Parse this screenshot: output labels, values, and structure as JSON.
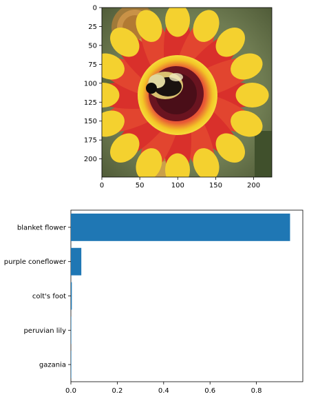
{
  "chart_data": [
    {
      "type": "image",
      "description_visible": "flower photo",
      "xlim": [
        0,
        224
      ],
      "ylim": [
        224,
        0
      ],
      "xticks": [
        0,
        50,
        100,
        150,
        200
      ],
      "yticks": [
        0,
        25,
        50,
        75,
        100,
        125,
        150,
        175,
        200
      ],
      "xlabel": "",
      "ylabel": "",
      "title": ""
    },
    {
      "type": "bar",
      "orientation": "horizontal",
      "categories": [
        "blanket flower",
        "purple coneflower",
        "colt's foot",
        "peruvian lily",
        "gazania"
      ],
      "values": [
        0.945,
        0.045,
        0.004,
        0.001,
        0.0005
      ],
      "xlim": [
        0,
        1.0
      ],
      "xticks": [
        0.0,
        0.2,
        0.4,
        0.6,
        0.8
      ],
      "xlabel": "",
      "ylabel": "",
      "title": "",
      "bar_color": "#1f77b4"
    }
  ],
  "colors": {
    "bar": "#1f77b4",
    "axis": "#000000"
  }
}
